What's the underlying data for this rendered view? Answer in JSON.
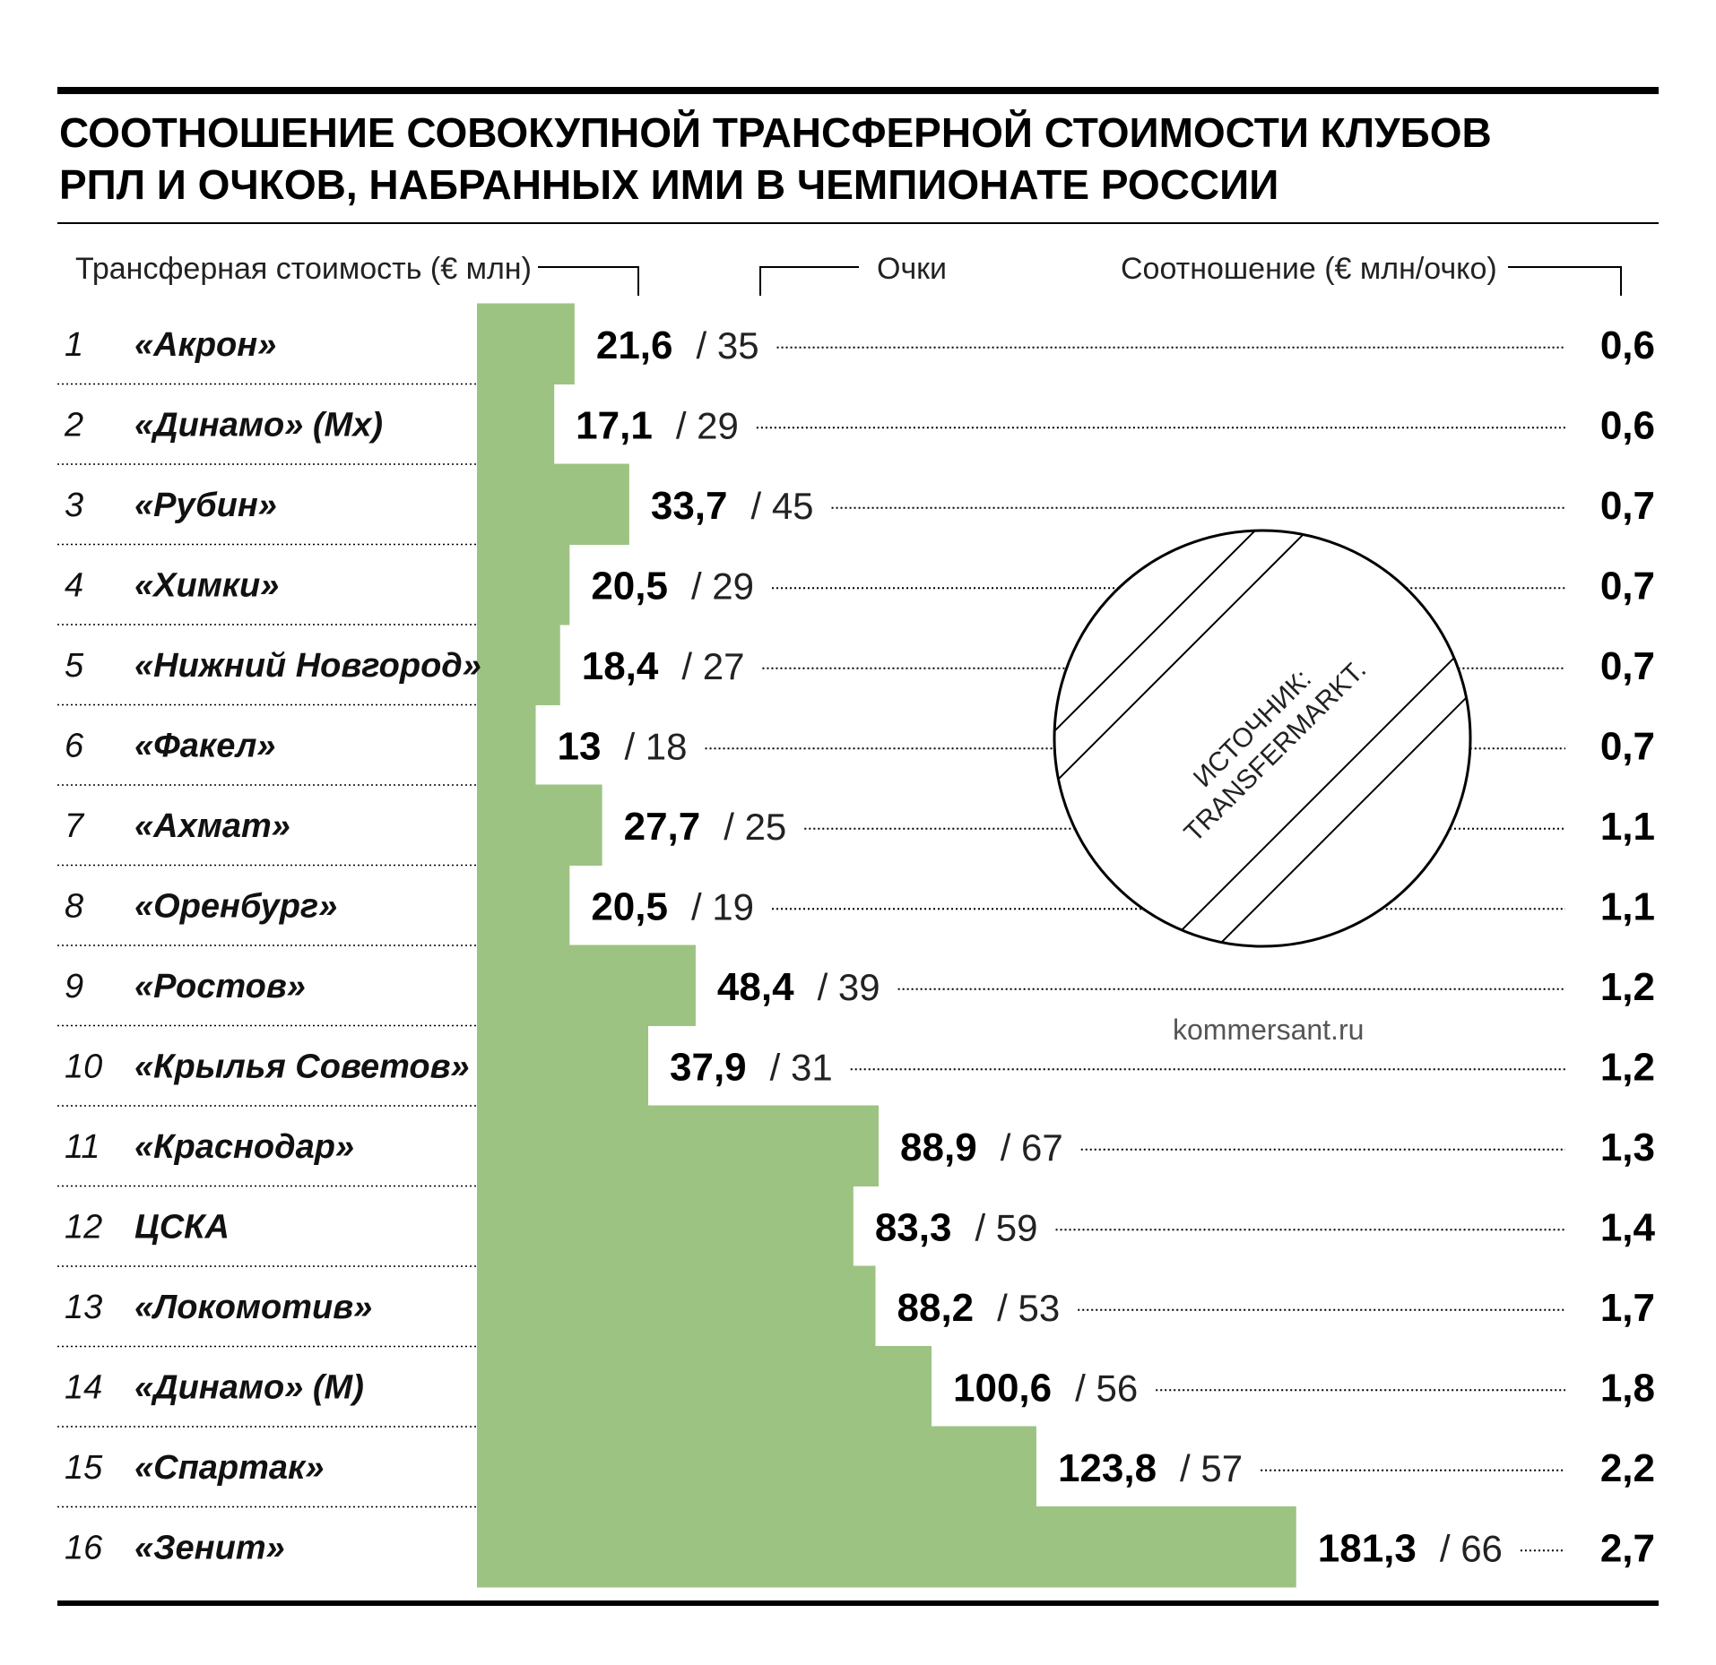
{
  "title_lines": [
    "СООТНОШЕНИЕ СОВОКУПНОЙ ТРАНСФЕРНОЙ СТОИМОСТИ КЛУБОВ",
    "РПЛ И ОЧКОВ, НАБРАННЫХ ИМИ В ЧЕМПИОНАТЕ РОССИИ"
  ],
  "headers": {
    "value": "Трансферная стоимость (€ млн)",
    "points": "Очки",
    "ratio": "Соотношение (€ млн/очко)"
  },
  "source_label": [
    "ИСТОЧНИК:",
    "TRANSFERMARKT."
  ],
  "site": "kommersant.ru",
  "colors": {
    "bar": "#9dc383",
    "text": "#000000",
    "rule": "#000000"
  },
  "chart_data": {
    "type": "bar",
    "orientation": "horizontal",
    "title": "СООТНОШЕНИЕ СОВОКУПНОЙ ТРАНСФЕРНОЙ СТОИМОСТИ КЛУБОВ РПЛ И ОЧКОВ, НАБРАННЫХ ИМИ В ЧЕМПИОНАТЕ РОССИИ",
    "rows": [
      {
        "rank": "1",
        "club": "«Акрон»",
        "value": 21.6,
        "value_label": "21,6",
        "points": "35",
        "ratio": "0,6"
      },
      {
        "rank": "2",
        "club": "«Динамо» (Мх)",
        "value": 17.1,
        "value_label": "17,1",
        "points": "29",
        "ratio": "0,6"
      },
      {
        "rank": "3",
        "club": "«Рубин»",
        "value": 33.7,
        "value_label": "33,7",
        "points": "45",
        "ratio": "0,7"
      },
      {
        "rank": "4",
        "club": "«Химки»",
        "value": 20.5,
        "value_label": "20,5",
        "points": "29",
        "ratio": "0,7"
      },
      {
        "rank": "5",
        "club": "«Нижний Новгород»",
        "value": 18.4,
        "value_label": "18,4",
        "points": "27",
        "ratio": "0,7"
      },
      {
        "rank": "6",
        "club": "«Факел»",
        "value": 13,
        "value_label": "13",
        "points": "18",
        "ratio": "0,7"
      },
      {
        "rank": "7",
        "club": "«Ахмат»",
        "value": 27.7,
        "value_label": "27,7",
        "points": "25",
        "ratio": "1,1"
      },
      {
        "rank": "8",
        "club": "«Оренбург»",
        "value": 20.5,
        "value_label": "20,5",
        "points": "19",
        "ratio": "1,1"
      },
      {
        "rank": "9",
        "club": "«Ростов»",
        "value": 48.4,
        "value_label": "48,4",
        "points": "39",
        "ratio": "1,2"
      },
      {
        "rank": "10",
        "club": "«Крылья Советов»",
        "value": 37.9,
        "value_label": "37,9",
        "points": "31",
        "ratio": "1,2"
      },
      {
        "rank": "11",
        "club": "«Краснодар»",
        "value": 88.9,
        "value_label": "88,9",
        "points": "67",
        "ratio": "1,3"
      },
      {
        "rank": "12",
        "club": "ЦСКА",
        "value": 83.3,
        "value_label": "83,3",
        "points": "59",
        "ratio": "1,4"
      },
      {
        "rank": "13",
        "club": "«Локомотив»",
        "value": 88.2,
        "value_label": "88,2",
        "points": "53",
        "ratio": "1,7"
      },
      {
        "rank": "14",
        "club": "«Динамо» (М)",
        "value": 100.6,
        "value_label": "100,6",
        "points": "56",
        "ratio": "1,8"
      },
      {
        "rank": "15",
        "club": "«Спартак»",
        "value": 123.8,
        "value_label": "123,8",
        "points": "57",
        "ratio": "2,2"
      },
      {
        "rank": "16",
        "club": "«Зенит»",
        "value": 181.3,
        "value_label": "181,3",
        "points": "66",
        "ratio": "2,7"
      }
    ]
  }
}
